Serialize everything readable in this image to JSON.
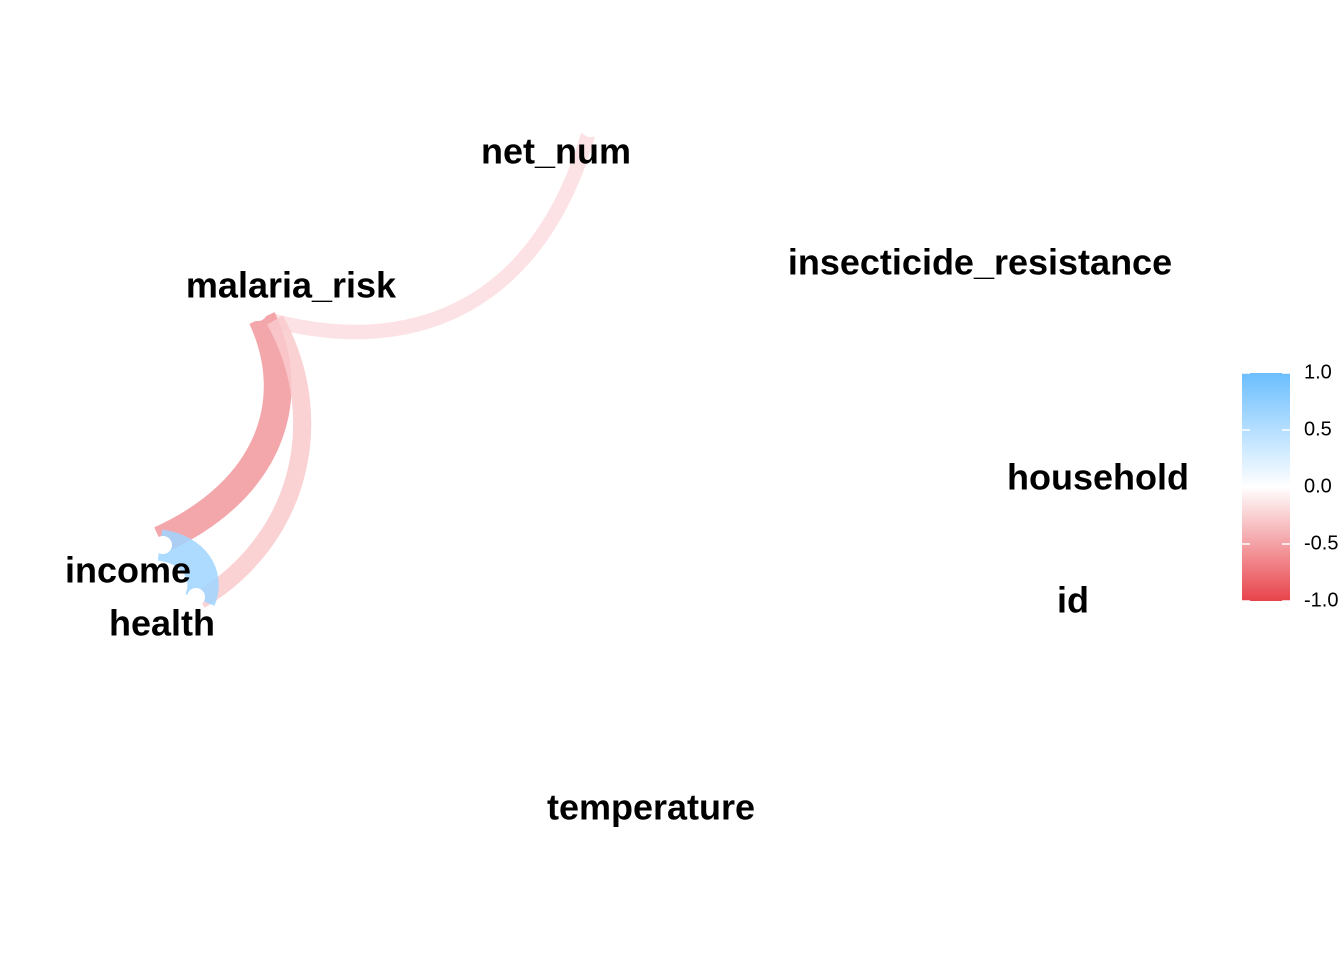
{
  "chart_data": {
    "type": "network",
    "title": "",
    "nodes": [
      {
        "id": "net_num",
        "label": "net_num"
      },
      {
        "id": "insecticide_resistance",
        "label": "insecticide_resistance"
      },
      {
        "id": "household",
        "label": "household"
      },
      {
        "id": "id",
        "label": "id"
      },
      {
        "id": "temperature",
        "label": "temperature"
      },
      {
        "id": "health",
        "label": "health"
      },
      {
        "id": "income",
        "label": "income"
      },
      {
        "id": "malaria_risk",
        "label": "malaria_risk"
      }
    ],
    "edges": [
      {
        "from": "malaria_risk",
        "to": "net_num",
        "correlation": -0.18
      },
      {
        "from": "malaria_risk",
        "to": "income",
        "correlation": -0.55
      },
      {
        "from": "malaria_risk",
        "to": "health",
        "correlation": -0.28
      },
      {
        "from": "income",
        "to": "health",
        "correlation": 0.65
      }
    ],
    "legend": {
      "position": "right",
      "range": [
        -1,
        1
      ],
      "ticks": [
        "1.0",
        "0.5",
        "0.0",
        "-0.5",
        "-1.0"
      ],
      "colors": {
        "high": "#6BBEFF",
        "mid": "#FFFFFF",
        "low": "#E8434B"
      }
    }
  }
}
